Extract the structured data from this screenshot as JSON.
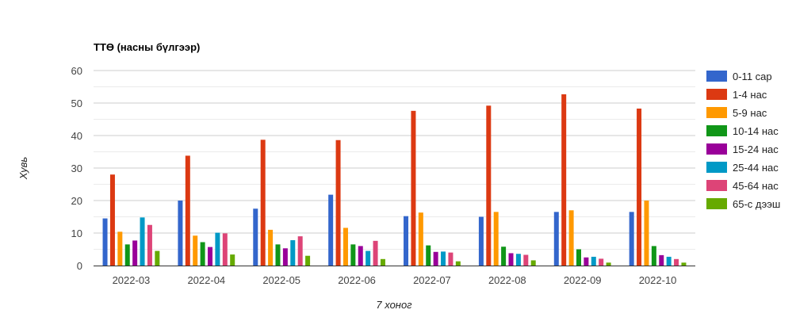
{
  "chart_data": {
    "type": "bar",
    "title": "ТТӨ (насны бүлгээр)",
    "xlabel": "7 хоног",
    "ylabel": "Хувь",
    "ylim": [
      0,
      60
    ],
    "yticks": [
      0,
      10,
      20,
      30,
      40,
      50,
      60
    ],
    "grid": true,
    "legend_position": "right",
    "categories": [
      "2022-03",
      "2022-04",
      "2022-05",
      "2022-06",
      "2022-07",
      "2022-08",
      "2022-09",
      "2022-10"
    ],
    "series": [
      {
        "name": "0-11 сар",
        "color": "#3366cc",
        "values": [
          14.5,
          20.0,
          17.5,
          21.8,
          15.2,
          15.0,
          16.5,
          16.5
        ]
      },
      {
        "name": "1-4 нас",
        "color": "#dc3912",
        "values": [
          28.0,
          33.8,
          38.7,
          38.6,
          47.6,
          49.2,
          52.7,
          48.3
        ]
      },
      {
        "name": "5-9 нас",
        "color": "#ff9900",
        "values": [
          10.4,
          9.2,
          11.0,
          11.6,
          16.3,
          16.5,
          17.0,
          20.0
        ]
      },
      {
        "name": "10-14 нас",
        "color": "#109618",
        "values": [
          6.5,
          7.2,
          6.5,
          6.5,
          6.2,
          5.8,
          5.0,
          6.0
        ]
      },
      {
        "name": "15-24 нас",
        "color": "#990099",
        "values": [
          7.7,
          5.7,
          5.3,
          6.0,
          4.2,
          3.8,
          2.5,
          3.2
        ]
      },
      {
        "name": "25-44 нас",
        "color": "#0099c6",
        "values": [
          14.8,
          10.1,
          7.8,
          4.5,
          4.3,
          3.6,
          2.7,
          2.7
        ]
      },
      {
        "name": "45-64 нас",
        "color": "#dd4477",
        "values": [
          12.5,
          9.9,
          9.0,
          7.6,
          4.0,
          3.3,
          2.1,
          2.0
        ]
      },
      {
        "name": "65-с дээш",
        "color": "#66aa00",
        "values": [
          4.5,
          3.4,
          3.0,
          2.0,
          1.3,
          1.6,
          0.9,
          0.9
        ]
      }
    ]
  }
}
